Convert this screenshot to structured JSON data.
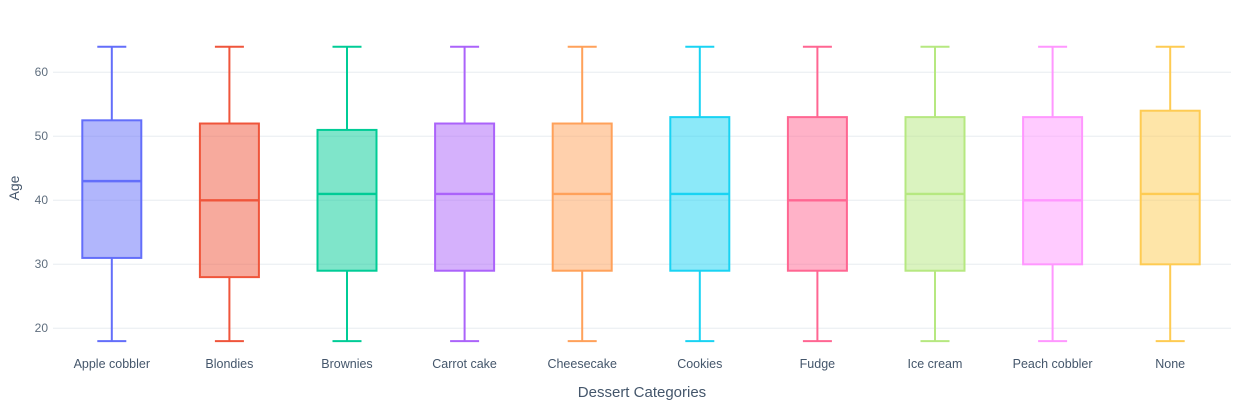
{
  "chart_data": {
    "type": "box",
    "xlabel": "Dessert Categories",
    "ylabel": "Age",
    "categories": [
      "Apple cobbler",
      "Blondies",
      "Brownies",
      "Carrot cake",
      "Cheesecake",
      "Cookies",
      "Fudge",
      "Ice cream",
      "Peach cobbler",
      "None"
    ],
    "series": [
      {
        "name": "Apple cobbler",
        "color": "#636EFA",
        "min": 18,
        "q1": 31,
        "median": 43,
        "q3": 52.5,
        "max": 64
      },
      {
        "name": "Blondies",
        "color": "#EF553B",
        "min": 18,
        "q1": 28,
        "median": 40,
        "q3": 52,
        "max": 64
      },
      {
        "name": "Brownies",
        "color": "#00CC96",
        "min": 18,
        "q1": 29,
        "median": 41,
        "q3": 51,
        "max": 64
      },
      {
        "name": "Carrot cake",
        "color": "#AB63FA",
        "min": 18,
        "q1": 29,
        "median": 41,
        "q3": 52,
        "max": 64
      },
      {
        "name": "Cheesecake",
        "color": "#FFA15A",
        "min": 18,
        "q1": 29,
        "median": 41,
        "q3": 52,
        "max": 64
      },
      {
        "name": "Cookies",
        "color": "#19D3F3",
        "min": 18,
        "q1": 29,
        "median": 41,
        "q3": 53,
        "max": 64
      },
      {
        "name": "Fudge",
        "color": "#FF6692",
        "min": 18,
        "q1": 29,
        "median": 40,
        "q3": 53,
        "max": 64
      },
      {
        "name": "Ice cream",
        "color": "#B6E880",
        "min": 18,
        "q1": 29,
        "median": 41,
        "q3": 53,
        "max": 64
      },
      {
        "name": "Peach cobbler",
        "color": "#FF97FF",
        "min": 18,
        "q1": 30,
        "median": 40,
        "q3": 53,
        "max": 64
      },
      {
        "name": "None",
        "color": "#FECB52",
        "min": 18,
        "q1": 30,
        "median": 41,
        "q3": 54,
        "max": 64
      }
    ],
    "yticks": [
      20,
      30,
      40,
      50,
      60
    ],
    "ylim": [
      16.3,
      71.3
    ],
    "grid": "horizontal-only",
    "legend": "none",
    "background": "#ffffff",
    "grid_color": "#eef1f4",
    "tick_label_color": "#5f6e7e",
    "axis_label_color": "#44566b",
    "box_fill_opacity": 0.5
  }
}
